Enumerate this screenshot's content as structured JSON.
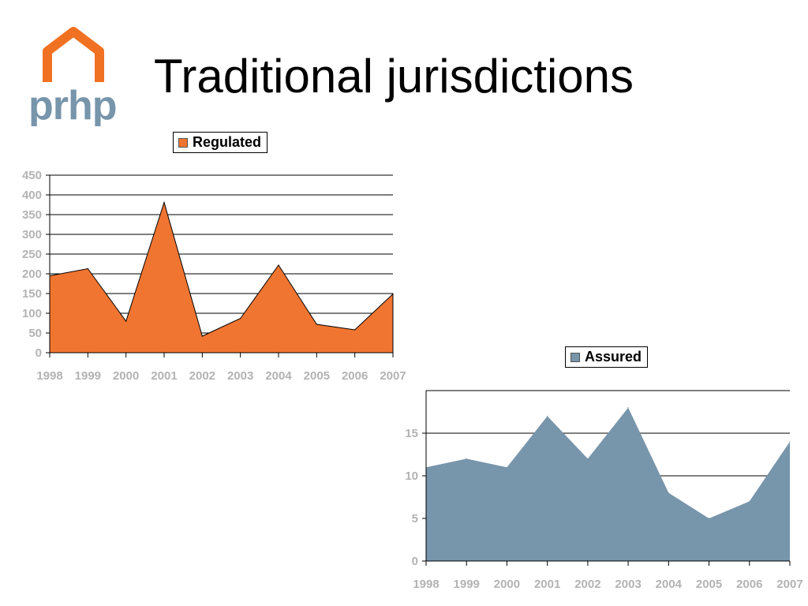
{
  "logo": {
    "text": "prhp",
    "colors": {
      "house": "#f07122",
      "text": "#7795ab"
    }
  },
  "slide": {
    "title": "Traditional jurisdictions"
  },
  "chart_data": [
    {
      "type": "area",
      "title": "",
      "xlabel": "",
      "ylabel": "",
      "categories": [
        "1998",
        "1999",
        "2000",
        "2001",
        "2002",
        "2003",
        "2004",
        "2005",
        "2006",
        "2007"
      ],
      "series": [
        {
          "name": "Regulated",
          "color": "#f07531",
          "values": [
            195,
            213,
            80,
            381,
            42,
            87,
            222,
            72,
            58,
            149
          ]
        }
      ],
      "ylim": [
        0,
        450
      ],
      "yticks": [
        0,
        50,
        100,
        150,
        200,
        250,
        300,
        350,
        400,
        450
      ],
      "grid": true,
      "legend": "top"
    },
    {
      "type": "area",
      "title": "",
      "xlabel": "",
      "ylabel": "",
      "categories": [
        "1998",
        "1999",
        "2000",
        "2001",
        "2002",
        "2003",
        "2004",
        "2005",
        "2006",
        "2007"
      ],
      "series": [
        {
          "name": "Assured",
          "color": "#7795ab",
          "values": [
            11,
            12,
            11,
            17,
            12,
            18,
            8,
            5,
            7,
            14
          ]
        }
      ],
      "ylim": [
        0,
        20
      ],
      "yticks": [
        0,
        5,
        10,
        15
      ],
      "grid": true,
      "legend": "top"
    }
  ]
}
